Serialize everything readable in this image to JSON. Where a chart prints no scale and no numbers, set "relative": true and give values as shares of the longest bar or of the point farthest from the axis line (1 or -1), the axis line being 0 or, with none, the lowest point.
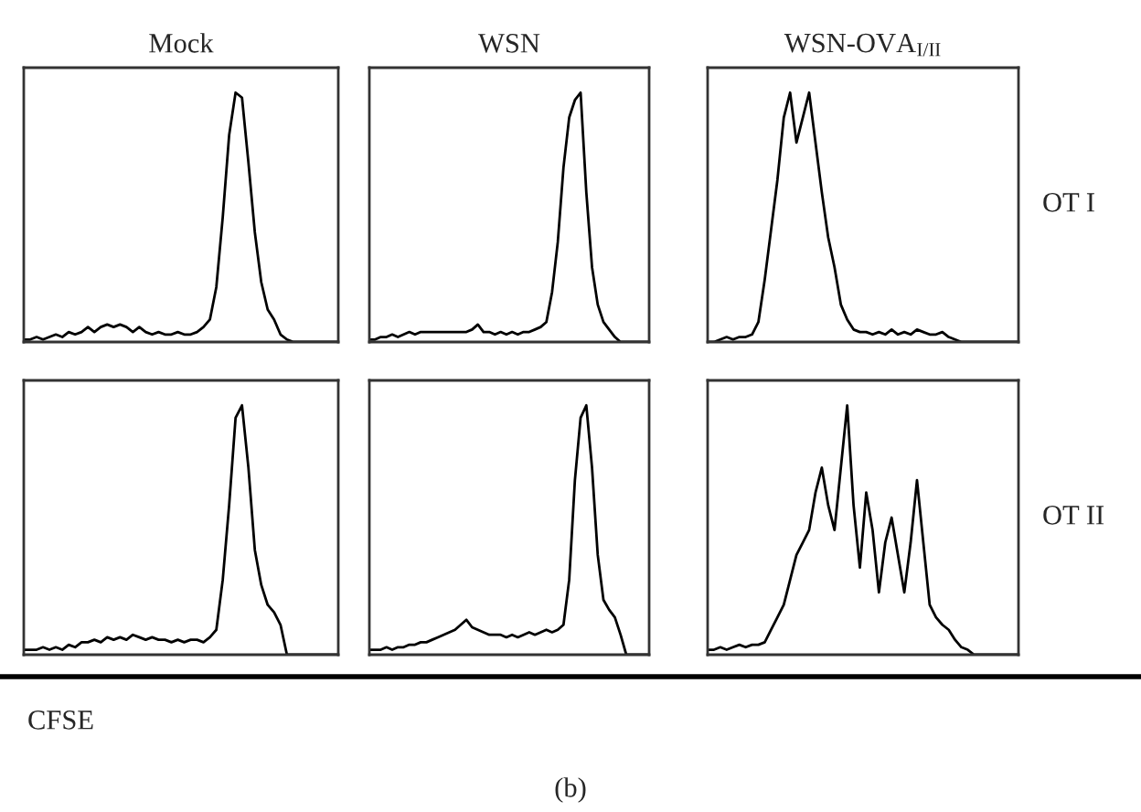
{
  "chart_data": [
    {
      "type": "line",
      "title": "Mock",
      "relative": true,
      "categories": [
        null,
        null,
        null,
        null,
        null,
        null,
        null,
        null,
        null,
        null,
        null,
        null,
        null,
        null,
        null,
        null,
        null,
        null,
        null,
        null,
        null,
        null,
        null,
        null,
        null,
        null,
        null,
        null,
        null,
        null,
        null,
        null,
        null,
        null,
        null,
        null,
        null,
        null,
        null,
        null,
        null,
        null,
        null,
        null,
        null,
        null,
        null,
        null,
        null,
        null
      ],
      "series": [
        {
          "color": "#000000",
          "values": [
            0.01,
            0.01,
            0.02,
            0.01,
            0.02,
            0.03,
            0.02,
            0.04,
            0.03,
            0.04,
            0.06,
            0.04,
            0.06,
            0.07,
            0.06,
            0.07,
            0.06,
            0.04,
            0.06,
            0.04,
            0.03,
            0.04,
            0.03,
            0.03,
            0.04,
            0.03,
            0.03,
            0.04,
            0.06,
            0.09,
            0.22,
            0.5,
            0.83,
            1,
            0.98,
            0.72,
            0.44,
            0.24,
            0.13,
            0.09,
            0.03,
            0.01,
            0,
            0,
            0,
            0,
            0,
            0,
            0,
            0
          ]
        }
      ]
    },
    {
      "type": "line",
      "title": "WSN",
      "relative": true,
      "categories": [
        null,
        null,
        null,
        null,
        null,
        null,
        null,
        null,
        null,
        null,
        null,
        null,
        null,
        null,
        null,
        null,
        null,
        null,
        null,
        null,
        null,
        null,
        null,
        null,
        null,
        null,
        null,
        null,
        null,
        null,
        null,
        null,
        null,
        null,
        null,
        null,
        null,
        null,
        null,
        null,
        null,
        null,
        null,
        null,
        null,
        null,
        null,
        null,
        null,
        null
      ],
      "series": [
        {
          "color": "#000000",
          "values": [
            0.01,
            0.01,
            0.02,
            0.02,
            0.03,
            0.02,
            0.03,
            0.04,
            0.03,
            0.04,
            0.04,
            0.04,
            0.04,
            0.04,
            0.04,
            0.04,
            0.04,
            0.04,
            0.05,
            0.07,
            0.04,
            0.04,
            0.03,
            0.04,
            0.03,
            0.04,
            0.03,
            0.04,
            0.04,
            0.05,
            0.06,
            0.08,
            0.2,
            0.4,
            0.7,
            0.9,
            0.97,
            1,
            0.6,
            0.3,
            0.15,
            0.08,
            0.05,
            0.02,
            0,
            0,
            0,
            0,
            0,
            0
          ]
        }
      ]
    },
    {
      "type": "line",
      "title": "WSN-OVA$_{I/II}$",
      "relative": true,
      "annotations": [
        "OT I"
      ],
      "categories": [
        null,
        null,
        null,
        null,
        null,
        null,
        null,
        null,
        null,
        null,
        null,
        null,
        null,
        null,
        null,
        null,
        null,
        null,
        null,
        null,
        null,
        null,
        null,
        null,
        null,
        null,
        null,
        null,
        null,
        null,
        null,
        null,
        null,
        null,
        null,
        null,
        null,
        null,
        null,
        null,
        null,
        null,
        null,
        null,
        null,
        null,
        null,
        null,
        null,
        null
      ],
      "series": [
        {
          "color": "#000000",
          "values": [
            0,
            0,
            0.01,
            0.02,
            0.01,
            0.02,
            0.02,
            0.03,
            0.08,
            0.25,
            0.45,
            0.65,
            0.9,
            1,
            0.8,
            0.9,
            1,
            0.8,
            0.6,
            0.42,
            0.3,
            0.15,
            0.09,
            0.05,
            0.04,
            0.04,
            0.03,
            0.04,
            0.03,
            0.05,
            0.03,
            0.04,
            0.03,
            0.05,
            0.04,
            0.03,
            0.03,
            0.04,
            0.02,
            0.01,
            0,
            0,
            0,
            0,
            0,
            0,
            0,
            0,
            0,
            0
          ]
        }
      ]
    },
    {
      "type": "line",
      "relative": true,
      "annotations": [
        "CFSE"
      ],
      "categories": [
        null,
        null,
        null,
        null,
        null,
        null,
        null,
        null,
        null,
        null,
        null,
        null,
        null,
        null,
        null,
        null,
        null,
        null,
        null,
        null,
        null,
        null,
        null,
        null,
        null,
        null,
        null,
        null,
        null,
        null,
        null,
        null,
        null,
        null,
        null,
        null,
        null,
        null,
        null,
        null,
        null,
        null,
        null,
        null,
        null,
        null,
        null,
        null,
        null,
        null
      ],
      "series": [
        {
          "color": "#000000",
          "values": [
            0.02,
            0.02,
            0.02,
            0.03,
            0.02,
            0.03,
            0.02,
            0.04,
            0.03,
            0.05,
            0.05,
            0.06,
            0.05,
            0.07,
            0.06,
            0.07,
            0.06,
            0.08,
            0.07,
            0.06,
            0.07,
            0.06,
            0.06,
            0.05,
            0.06,
            0.05,
            0.06,
            0.06,
            0.05,
            0.07,
            0.1,
            0.3,
            0.6,
            0.95,
            1,
            0.75,
            0.42,
            0.28,
            0.2,
            0.17,
            0.12,
            0,
            0,
            0,
            0,
            0,
            0,
            0,
            0,
            0
          ]
        }
      ]
    },
    {
      "type": "line",
      "relative": true,
      "annotations": [
        "(b)"
      ],
      "categories": [
        null,
        null,
        null,
        null,
        null,
        null,
        null,
        null,
        null,
        null,
        null,
        null,
        null,
        null,
        null,
        null,
        null,
        null,
        null,
        null,
        null,
        null,
        null,
        null,
        null,
        null,
        null,
        null,
        null,
        null,
        null,
        null,
        null,
        null,
        null,
        null,
        null,
        null,
        null,
        null,
        null,
        null,
        null,
        null,
        null,
        null,
        null,
        null,
        null,
        null
      ],
      "series": [
        {
          "color": "#000000",
          "values": [
            0.02,
            0.02,
            0.02,
            0.03,
            0.02,
            0.03,
            0.03,
            0.04,
            0.04,
            0.05,
            0.05,
            0.06,
            0.07,
            0.08,
            0.09,
            0.1,
            0.12,
            0.14,
            0.11,
            0.1,
            0.09,
            0.08,
            0.08,
            0.08,
            0.07,
            0.08,
            0.07,
            0.08,
            0.09,
            0.08,
            0.09,
            0.1,
            0.09,
            0.1,
            0.12,
            0.3,
            0.7,
            0.95,
            1,
            0.75,
            0.4,
            0.22,
            0.18,
            0.15,
            0.08,
            0,
            0,
            0,
            0,
            0
          ]
        }
      ]
    },
    {
      "type": "line",
      "relative": true,
      "annotations": [
        "OT II"
      ],
      "categories": [
        null,
        null,
        null,
        null,
        null,
        null,
        null,
        null,
        null,
        null,
        null,
        null,
        null,
        null,
        null,
        null,
        null,
        null,
        null,
        null,
        null,
        null,
        null,
        null,
        null,
        null,
        null,
        null,
        null,
        null,
        null,
        null,
        null,
        null,
        null,
        null,
        null,
        null,
        null,
        null,
        null,
        null,
        null,
        null,
        null,
        null,
        null,
        null,
        null,
        null
      ],
      "series": [
        {
          "color": "#000000",
          "values": [
            0.02,
            0.02,
            0.03,
            0.02,
            0.03,
            0.04,
            0.03,
            0.04,
            0.04,
            0.05,
            0.1,
            0.15,
            0.2,
            0.3,
            0.4,
            0.45,
            0.5,
            0.65,
            0.75,
            0.6,
            0.5,
            0.75,
            1,
            0.6,
            0.35,
            0.65,
            0.5,
            0.25,
            0.45,
            0.55,
            0.4,
            0.25,
            0.45,
            0.7,
            0.45,
            0.2,
            0.15,
            0.12,
            0.1,
            0.06,
            0.03,
            0.02,
            0,
            0,
            0,
            0,
            0,
            0,
            0,
            0
          ]
        }
      ]
    }
  ]
}
